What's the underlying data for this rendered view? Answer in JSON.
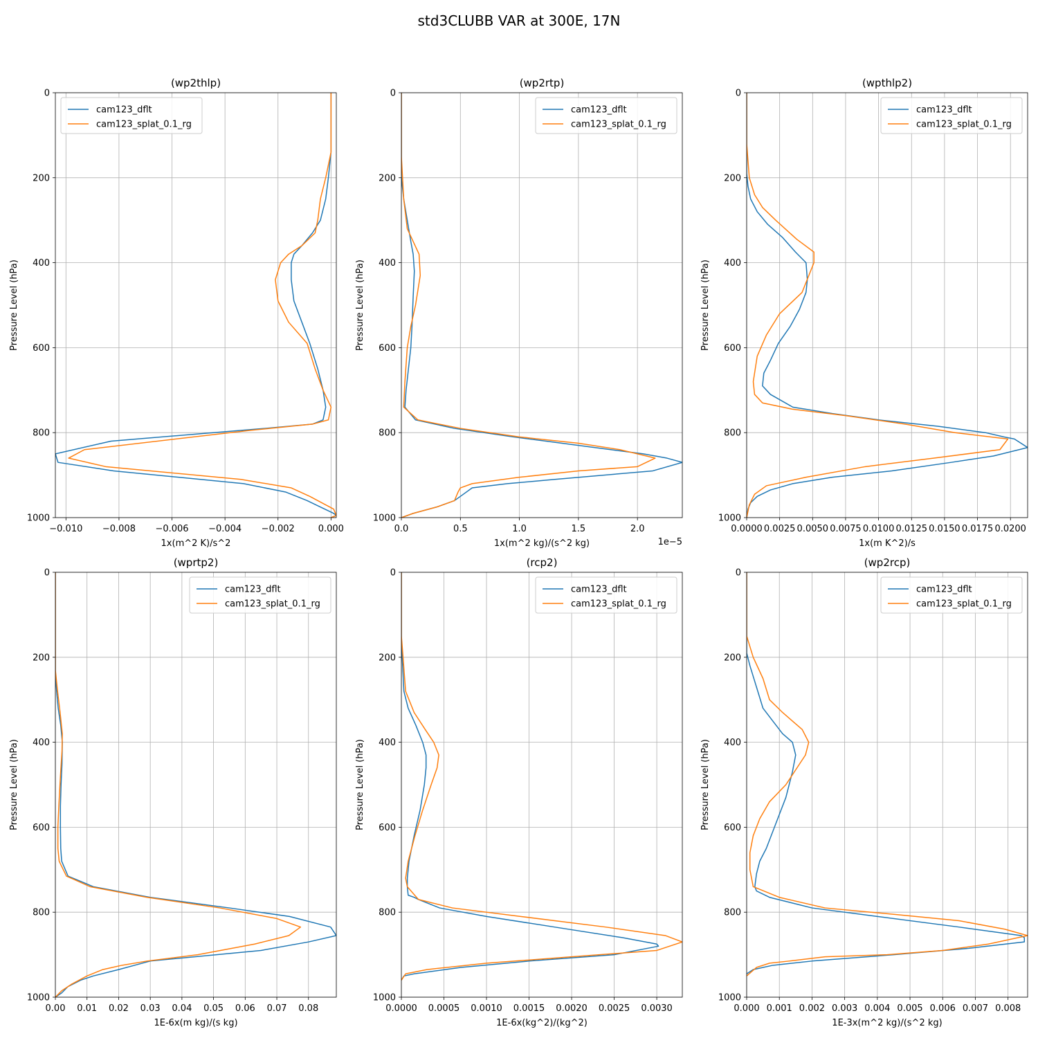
{
  "figure_title": "std3CLUBB VAR at 300E, 17N",
  "colors": {
    "dflt": "#1f77b4",
    "splat": "#ff7f0e",
    "grid": "#b0b0b0",
    "axis": "#000000"
  },
  "chart_data": [
    {
      "type": "line",
      "title": "(wp2thlp)",
      "xlabel": "1x(m^2 K)/s^2",
      "ylabel": "Pressure Level (hPa)",
      "offset_text": "",
      "xlim": [
        -0.0104,
        0.0002
      ],
      "ylim": [
        1000,
        0
      ],
      "xticks": [
        -0.01,
        -0.008,
        -0.006,
        -0.004,
        -0.002,
        0.0
      ],
      "xtick_labels": [
        "−0.010",
        "−0.008",
        "−0.006",
        "−0.004",
        "−0.002",
        "0.000"
      ],
      "yticks": [
        0,
        200,
        400,
        600,
        800,
        1000
      ],
      "ytick_labels": [
        "0",
        "200",
        "400",
        "600",
        "800",
        "1000"
      ],
      "legend_position": "upper-left",
      "grid": true,
      "series": [
        {
          "name": "cam123_dflt",
          "x": [
            0.0,
            0.0,
            -0.0001,
            -0.0002,
            -0.0004,
            -0.0007,
            -0.0011,
            -0.0014,
            -0.0015,
            -0.0015,
            -0.0014,
            -0.0011,
            -0.0008,
            -0.0005,
            -0.0003,
            -0.0002,
            -0.0003,
            -0.0007,
            -0.0025,
            -0.0083,
            -0.0104,
            -0.0103,
            -0.0082,
            -0.0033,
            -0.0017,
            -0.0009,
            -0.0004,
            0.0001,
            0.0002,
            0.0
          ],
          "y": [
            0,
            140,
            200,
            250,
            300,
            330,
            360,
            380,
            400,
            440,
            490,
            540,
            590,
            650,
            700,
            740,
            770,
            780,
            790,
            820,
            850,
            870,
            890,
            920,
            940,
            960,
            975,
            990,
            995,
            1000
          ]
        },
        {
          "name": "cam123_splat_0.1_rg",
          "x": [
            0.0,
            0.0,
            -0.0002,
            -0.0004,
            -0.0005,
            -0.0006,
            -0.0011,
            -0.0016,
            -0.0019,
            -0.0021,
            -0.002,
            -0.0016,
            -0.0009,
            -0.0006,
            -0.0003,
            0.0,
            -0.0001,
            -0.0007,
            -0.0031,
            -0.0093,
            -0.0099,
            -0.0085,
            -0.0034,
            -0.0015,
            -0.0008,
            0.0001,
            0.0002,
            0.0
          ],
          "y": [
            0,
            140,
            200,
            250,
            300,
            330,
            360,
            380,
            400,
            440,
            490,
            540,
            590,
            650,
            700,
            740,
            770,
            780,
            795,
            840,
            860,
            880,
            910,
            930,
            950,
            980,
            995,
            1000
          ]
        }
      ]
    },
    {
      "type": "line",
      "title": "(wp2rtp)",
      "xlabel": "1x(m^2 kg)/(s^2 kg)",
      "ylabel": "Pressure Level (hPa)",
      "offset_text": "1e−5",
      "xlim": [
        0.0,
        2.38
      ],
      "ylim": [
        1000,
        0
      ],
      "xticks": [
        0.0,
        0.5,
        1.0,
        1.5,
        2.0
      ],
      "xtick_labels": [
        "0.0",
        "0.5",
        "1.0",
        "1.5",
        "2.0"
      ],
      "yticks": [
        0,
        200,
        400,
        600,
        800,
        1000
      ],
      "ytick_labels": [
        "0",
        "200",
        "400",
        "600",
        "800",
        "1000"
      ],
      "legend_position": "upper-right",
      "grid": true,
      "series": [
        {
          "name": "cam123_dflt",
          "x": [
            0.0,
            0.0,
            0.02,
            0.05,
            0.08,
            0.1,
            0.11,
            0.1,
            0.09,
            0.08,
            0.06,
            0.04,
            0.03,
            0.12,
            0.45,
            0.95,
            1.5,
            2.05,
            2.25,
            2.38,
            2.13,
            1.3,
            0.9,
            0.6,
            0.5,
            0.45,
            0.3,
            0.1,
            0.0
          ],
          "y": [
            0,
            200,
            250,
            300,
            350,
            380,
            420,
            480,
            550,
            600,
            650,
            700,
            740,
            770,
            790,
            810,
            830,
            850,
            860,
            870,
            890,
            910,
            920,
            930,
            950,
            960,
            975,
            990,
            1000
          ]
        },
        {
          "name": "cam123_splat_0.1_rg",
          "x": [
            0.0,
            0.0,
            0.02,
            0.05,
            0.1,
            0.15,
            0.16,
            0.12,
            0.08,
            0.05,
            0.03,
            0.02,
            0.14,
            0.5,
            1.0,
            1.5,
            1.85,
            2.15,
            2.0,
            1.5,
            1.0,
            0.6,
            0.5,
            0.48,
            0.45,
            0.3,
            0.1,
            0.0
          ],
          "y": [
            0,
            150,
            250,
            320,
            350,
            380,
            430,
            500,
            550,
            600,
            680,
            740,
            770,
            790,
            810,
            825,
            840,
            860,
            880,
            890,
            905,
            920,
            930,
            940,
            960,
            975,
            990,
            1000
          ]
        }
      ]
    },
    {
      "type": "line",
      "title": "(wpthlp2)",
      "xlabel": "1x(m K^2)/s",
      "ylabel": "Pressure Level (hPa)",
      "offset_text": "",
      "xlim": [
        0.0,
        0.0213
      ],
      "ylim": [
        1000,
        0
      ],
      "xticks": [
        0.0,
        0.0025,
        0.005,
        0.0075,
        0.01,
        0.0125,
        0.015,
        0.0175,
        0.02
      ],
      "xtick_labels": [
        "0.0000",
        "0.0025",
        "0.0050",
        "0.0075",
        "0.0100",
        "0.0125",
        "0.0150",
        "0.0175",
        "0.0200"
      ],
      "yticks": [
        0,
        200,
        400,
        600,
        800,
        1000
      ],
      "ytick_labels": [
        "0",
        "200",
        "400",
        "600",
        "800",
        "1000"
      ],
      "legend_position": "upper-right",
      "grid": true,
      "series": [
        {
          "name": "cam123_dflt",
          "x": [
            0.0,
            0.0,
            0.0001,
            0.0003,
            0.0008,
            0.0016,
            0.0027,
            0.0037,
            0.0045,
            0.0046,
            0.0045,
            0.004,
            0.0033,
            0.0024,
            0.0018,
            0.0013,
            0.0012,
            0.0018,
            0.0035,
            0.0065,
            0.01,
            0.0145,
            0.0181,
            0.0195,
            0.0203,
            0.0213,
            0.0187,
            0.0155,
            0.011,
            0.0065,
            0.0035,
            0.0018,
            0.0008,
            0.0003,
            0.0001,
            0.0
          ],
          "y": [
            0,
            190,
            220,
            250,
            280,
            310,
            340,
            375,
            400,
            440,
            470,
            510,
            550,
            590,
            630,
            660,
            690,
            710,
            740,
            755,
            770,
            785,
            800,
            810,
            815,
            835,
            855,
            870,
            890,
            905,
            920,
            935,
            950,
            965,
            980,
            1000
          ]
        },
        {
          "name": "cam123_splat_0.1_rg",
          "x": [
            0.0,
            0.0,
            0.0002,
            0.0006,
            0.0012,
            0.0022,
            0.0038,
            0.0051,
            0.0051,
            0.0042,
            0.0025,
            0.0015,
            0.0008,
            0.0005,
            0.0006,
            0.0012,
            0.0035,
            0.0075,
            0.012,
            0.0158,
            0.0198,
            0.0192,
            0.0142,
            0.009,
            0.0045,
            0.0015,
            0.0006,
            0.0002,
            0.0
          ],
          "y": [
            0,
            120,
            200,
            240,
            270,
            300,
            345,
            375,
            400,
            470,
            520,
            570,
            620,
            680,
            710,
            730,
            745,
            760,
            780,
            800,
            815,
            840,
            860,
            880,
            905,
            925,
            945,
            970,
            1000
          ]
        }
      ]
    },
    {
      "type": "line",
      "title": "(wprtp2)",
      "xlabel": "1E-6x(m kg)/(s kg)",
      "ylabel": "Pressure Level (hPa)",
      "offset_text": "",
      "xlim": [
        0.0,
        0.0888
      ],
      "ylim": [
        1000,
        0
      ],
      "xticks": [
        0.0,
        0.01,
        0.02,
        0.03,
        0.04,
        0.05,
        0.06,
        0.07,
        0.08
      ],
      "xtick_labels": [
        "0.00",
        "0.01",
        "0.02",
        "0.03",
        "0.04",
        "0.05",
        "0.06",
        "0.07",
        "0.08"
      ],
      "yticks": [
        0,
        200,
        400,
        600,
        800,
        1000
      ],
      "ytick_labels": [
        "0",
        "200",
        "400",
        "600",
        "800",
        "1000"
      ],
      "legend_position": "upper-right",
      "grid": true,
      "series": [
        {
          "name": "cam123_dflt",
          "x": [
            0.0,
            0.0,
            0.0004,
            0.0009,
            0.0017,
            0.0022,
            0.0021,
            0.0018,
            0.0016,
            0.0016,
            0.0017,
            0.002,
            0.004,
            0.012,
            0.03,
            0.055,
            0.074,
            0.087,
            0.0888,
            0.08,
            0.065,
            0.03,
            0.02,
            0.012,
            0.008,
            0.004,
            0.002,
            0.0
          ],
          "y": [
            0,
            240,
            280,
            320,
            360,
            400,
            450,
            500,
            550,
            600,
            650,
            680,
            715,
            740,
            765,
            790,
            810,
            835,
            855,
            870,
            890,
            915,
            935,
            950,
            960,
            975,
            990,
            1000
          ]
        },
        {
          "name": "cam123_splat_0.1_rg",
          "x": [
            0.0,
            0.0,
            0.0007,
            0.0015,
            0.0022,
            0.0021,
            0.0016,
            0.0011,
            0.0008,
            0.0008,
            0.0012,
            0.0035,
            0.011,
            0.029,
            0.052,
            0.07,
            0.0775,
            0.0738,
            0.063,
            0.045,
            0.029,
            0.021,
            0.015,
            0.01,
            0.005,
            0.002,
            0.0
          ],
          "y": [
            0,
            230,
            280,
            330,
            380,
            420,
            480,
            550,
            600,
            650,
            680,
            715,
            740,
            765,
            790,
            815,
            835,
            855,
            875,
            900,
            915,
            925,
            935,
            950,
            970,
            985,
            1000
          ]
        }
      ]
    },
    {
      "type": "line",
      "title": "(rcp2)",
      "xlabel": "1E-6x(kg^2)/(kg^2)",
      "ylabel": "Pressure Level (hPa)",
      "offset_text": "",
      "xlim": [
        0.0,
        0.0033
      ],
      "ylim": [
        1000,
        0
      ],
      "xticks": [
        0.0,
        0.0005,
        0.001,
        0.0015,
        0.002,
        0.0025,
        0.003
      ],
      "xtick_labels": [
        "0.0000",
        "0.0005",
        "0.0010",
        "0.0015",
        "0.0020",
        "0.0025",
        "0.0030"
      ],
      "yticks": [
        0,
        200,
        400,
        600,
        800,
        1000
      ],
      "ytick_labels": [
        "0",
        "200",
        "400",
        "600",
        "800",
        "1000"
      ],
      "legend_position": "upper-right",
      "grid": true,
      "series": [
        {
          "name": "cam123_dflt",
          "x": [
            0.0,
            0.0,
            1e-05,
            3e-05,
            8e-05,
            0.00017,
            0.00025,
            0.00029,
            0.00029,
            0.00027,
            0.00022,
            0.00015,
            9e-05,
            7e-05,
            7e-05,
            8e-05,
            0.00015,
            0.0002,
            0.00045,
            0.001,
            0.0018,
            0.0026,
            0.003,
            0.00302,
            0.0025,
            0.0015,
            0.0007,
            0.00015,
            3e-05,
            0.0
          ],
          "y": [
            0,
            150,
            200,
            280,
            320,
            360,
            400,
            430,
            460,
            500,
            560,
            620,
            680,
            720,
            740,
            760,
            765,
            770,
            790,
            810,
            835,
            860,
            875,
            880,
            900,
            915,
            930,
            945,
            950,
            960
          ]
        },
        {
          "name": "cam123_splat_0.1_rg",
          "x": [
            0.0,
            0.0,
            2e-05,
            5e-05,
            0.00015,
            0.00028,
            0.00038,
            0.00044,
            0.00042,
            0.00035,
            0.00025,
            0.00016,
            8e-05,
            5e-05,
            7e-05,
            0.0002,
            0.0006,
            0.0014,
            0.0024,
            0.0031,
            0.0033,
            0.003,
            0.002,
            0.001,
            0.0003,
            5e-05,
            0.0
          ],
          "y": [
            0,
            150,
            200,
            280,
            330,
            370,
            400,
            430,
            460,
            500,
            560,
            620,
            680,
            720,
            740,
            770,
            790,
            810,
            835,
            855,
            870,
            890,
            905,
            920,
            935,
            945,
            960
          ]
        }
      ]
    },
    {
      "type": "line",
      "title": "(wp2rcp)",
      "xlabel": "1E-3x(m^2 kg)/(s^2 kg)",
      "ylabel": "Pressure Level (hPa)",
      "offset_text": "",
      "xlim": [
        0.0,
        0.0086
      ],
      "ylim": [
        1000,
        0
      ],
      "xticks": [
        0.0,
        0.001,
        0.002,
        0.003,
        0.004,
        0.005,
        0.006,
        0.007,
        0.008
      ],
      "xtick_labels": [
        "0.000",
        "0.001",
        "0.002",
        "0.003",
        "0.004",
        "0.005",
        "0.006",
        "0.007",
        "0.008"
      ],
      "yticks": [
        0,
        200,
        400,
        600,
        800,
        1000
      ],
      "ytick_labels": [
        "0",
        "200",
        "400",
        "600",
        "800",
        "1000"
      ],
      "legend_position": "upper-right",
      "grid": true,
      "series": [
        {
          "name": "cam123_dflt",
          "x": [
            0.0,
            0.0,
            0.0001,
            0.0003,
            0.0005,
            0.0008,
            0.0011,
            0.0014,
            0.0015,
            0.0014,
            0.0012,
            0.0009,
            0.0006,
            0.0004,
            0.0003,
            0.00025,
            0.0003,
            0.0007,
            0.002,
            0.004,
            0.0065,
            0.0084,
            0.0085,
            0.0085,
            0.0068,
            0.0045,
            0.002,
            0.0008,
            0.0002,
            0.0
          ],
          "y": [
            0,
            190,
            220,
            270,
            320,
            350,
            380,
            400,
            430,
            470,
            530,
            590,
            650,
            680,
            710,
            740,
            750,
            765,
            790,
            810,
            835,
            855,
            860,
            870,
            885,
            900,
            915,
            925,
            935,
            945
          ]
        },
        {
          "name": "cam123_splat_0.1_rg",
          "x": [
            0.0,
            0.0,
            0.0002,
            0.0005,
            0.0007,
            0.0011,
            0.0017,
            0.0019,
            0.0018,
            0.0012,
            0.0007,
            0.0004,
            0.0002,
            0.0001,
            0.0001,
            0.0002,
            0.001,
            0.0024,
            0.0045,
            0.0065,
            0.0079,
            0.0086,
            0.0074,
            0.006,
            0.0043,
            0.0024,
            0.0013,
            0.0007,
            0.0003,
            0.0
          ],
          "y": [
            0,
            150,
            200,
            250,
            300,
            330,
            370,
            400,
            430,
            500,
            540,
            580,
            620,
            660,
            700,
            740,
            765,
            790,
            805,
            820,
            840,
            855,
            875,
            890,
            900,
            905,
            915,
            920,
            930,
            950
          ]
        }
      ]
    }
  ]
}
